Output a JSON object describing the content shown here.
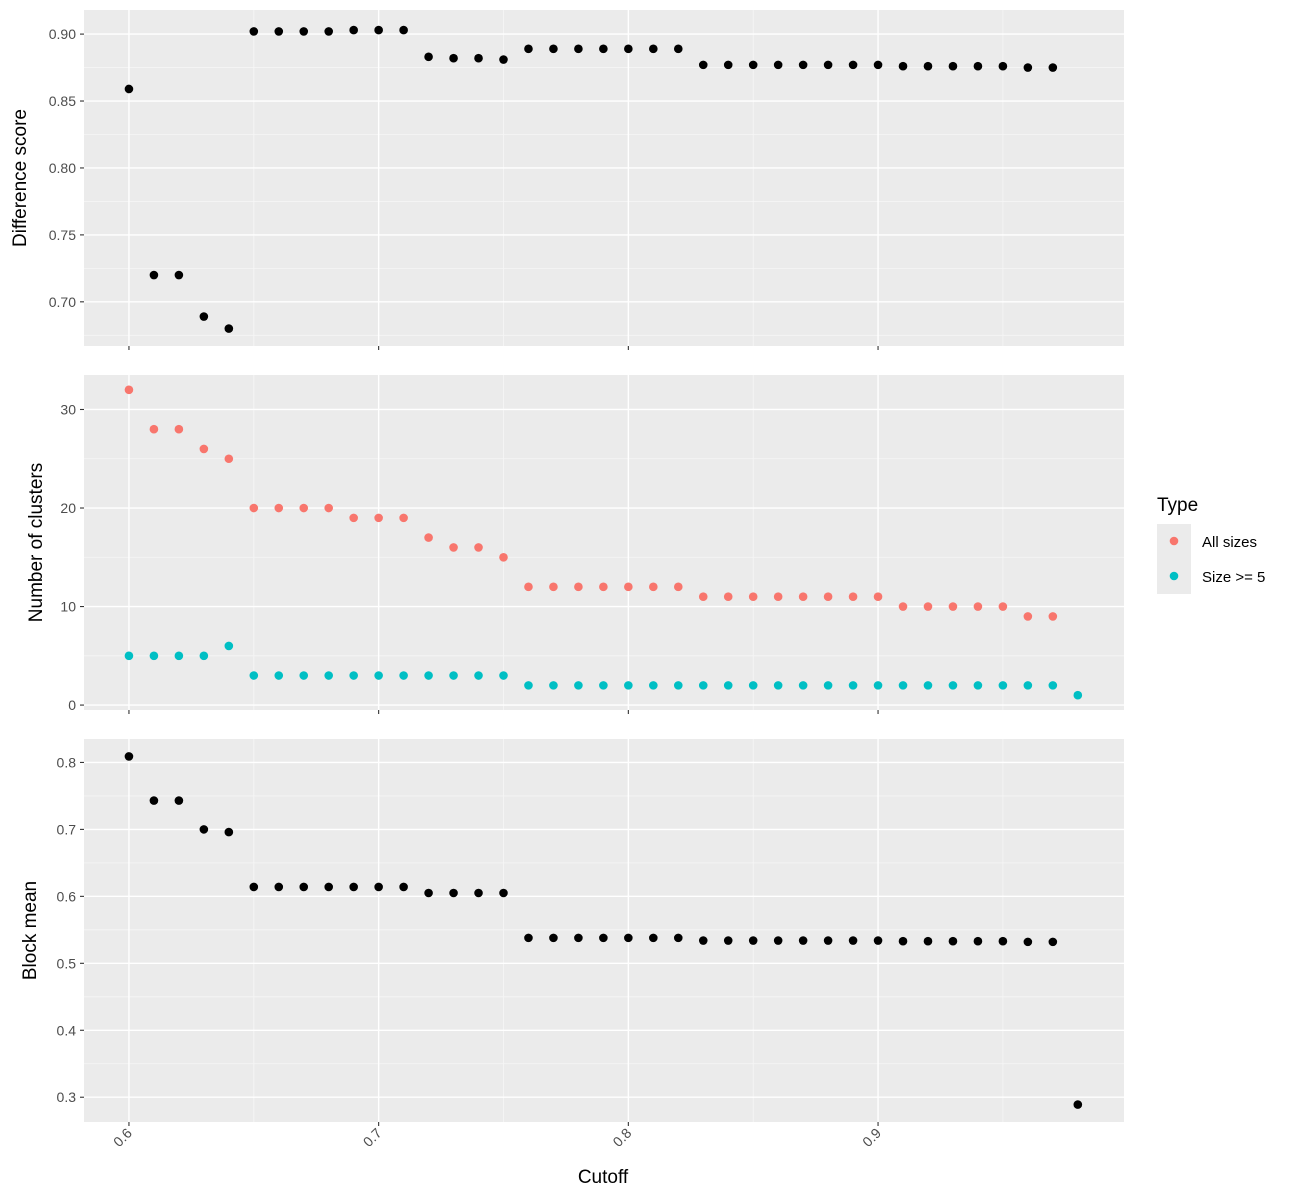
{
  "chart_data": [
    {
      "type": "scatter",
      "panel": "top",
      "ylabel": "Difference score",
      "xlabel": "",
      "ylim": [
        0.667,
        0.918
      ],
      "yticks": [
        0.7,
        0.75,
        0.8,
        0.85,
        0.9
      ],
      "ytick_labels": [
        "0.70",
        "0.75",
        "0.80",
        "0.85",
        "0.90"
      ],
      "grid": true,
      "series": [
        {
          "color": "#000000",
          "x": [
            0.6,
            0.61,
            0.62,
            0.63,
            0.64,
            0.65,
            0.66,
            0.67,
            0.68,
            0.69,
            0.7,
            0.71,
            0.72,
            0.73,
            0.74,
            0.75,
            0.76,
            0.77,
            0.78,
            0.79,
            0.8,
            0.81,
            0.82,
            0.83,
            0.84,
            0.85,
            0.86,
            0.87,
            0.88,
            0.89,
            0.9,
            0.91,
            0.92,
            0.93,
            0.94,
            0.95,
            0.96,
            0.97
          ],
          "y": [
            0.859,
            0.72,
            0.72,
            0.689,
            0.68,
            0.902,
            0.902,
            0.902,
            0.902,
            0.903,
            0.903,
            0.903,
            0.883,
            0.882,
            0.882,
            0.881,
            0.889,
            0.889,
            0.889,
            0.889,
            0.889,
            0.889,
            0.889,
            0.877,
            0.877,
            0.877,
            0.877,
            0.877,
            0.877,
            0.877,
            0.877,
            0.876,
            0.876,
            0.876,
            0.876,
            0.876,
            0.875,
            0.875
          ]
        }
      ]
    },
    {
      "type": "scatter",
      "panel": "middle",
      "ylabel": "Number of clusters",
      "xlabel": "",
      "ylim": [
        -0.5,
        33.5
      ],
      "yticks": [
        0,
        10,
        20,
        30
      ],
      "ytick_labels": [
        "0",
        "10",
        "20",
        "30"
      ],
      "grid": true,
      "series": [
        {
          "name": "All sizes",
          "color": "#f8766d",
          "x": [
            0.6,
            0.61,
            0.62,
            0.63,
            0.64,
            0.65,
            0.66,
            0.67,
            0.68,
            0.69,
            0.7,
            0.71,
            0.72,
            0.73,
            0.74,
            0.75,
            0.76,
            0.77,
            0.78,
            0.79,
            0.8,
            0.81,
            0.82,
            0.83,
            0.84,
            0.85,
            0.86,
            0.87,
            0.88,
            0.89,
            0.9,
            0.91,
            0.92,
            0.93,
            0.94,
            0.95,
            0.96,
            0.97
          ],
          "y": [
            32,
            28,
            28,
            26,
            25,
            20,
            20,
            20,
            20,
            19,
            19,
            19,
            17,
            16,
            16,
            15,
            12,
            12,
            12,
            12,
            12,
            12,
            12,
            11,
            11,
            11,
            11,
            11,
            11,
            11,
            11,
            10,
            10,
            10,
            10,
            10,
            9,
            9
          ]
        },
        {
          "name": "Size >= 5",
          "color": "#00bfc4",
          "x": [
            0.6,
            0.61,
            0.62,
            0.63,
            0.64,
            0.65,
            0.66,
            0.67,
            0.68,
            0.69,
            0.7,
            0.71,
            0.72,
            0.73,
            0.74,
            0.75,
            0.76,
            0.77,
            0.78,
            0.79,
            0.8,
            0.81,
            0.82,
            0.83,
            0.84,
            0.85,
            0.86,
            0.87,
            0.88,
            0.89,
            0.9,
            0.91,
            0.92,
            0.93,
            0.94,
            0.95,
            0.96,
            0.97,
            0.98
          ],
          "y": [
            5,
            5,
            5,
            5,
            6,
            3,
            3,
            3,
            3,
            3,
            3,
            3,
            3,
            3,
            3,
            3,
            2,
            2,
            2,
            2,
            2,
            2,
            2,
            2,
            2,
            2,
            2,
            2,
            2,
            2,
            2,
            2,
            2,
            2,
            2,
            2,
            2,
            2,
            1
          ]
        }
      ]
    },
    {
      "type": "scatter",
      "panel": "bottom",
      "ylabel": "Block mean",
      "xlabel": "Cutoff",
      "ylim": [
        0.263,
        0.835
      ],
      "yticks": [
        0.3,
        0.4,
        0.5,
        0.6,
        0.7,
        0.8
      ],
      "ytick_labels": [
        "0.3",
        "0.4",
        "0.5",
        "0.6",
        "0.7",
        "0.8"
      ],
      "grid": true,
      "series": [
        {
          "color": "#000000",
          "x": [
            0.6,
            0.61,
            0.62,
            0.63,
            0.64,
            0.65,
            0.66,
            0.67,
            0.68,
            0.69,
            0.7,
            0.71,
            0.72,
            0.73,
            0.74,
            0.75,
            0.76,
            0.77,
            0.78,
            0.79,
            0.8,
            0.81,
            0.82,
            0.83,
            0.84,
            0.85,
            0.86,
            0.87,
            0.88,
            0.89,
            0.9,
            0.91,
            0.92,
            0.93,
            0.94,
            0.95,
            0.96,
            0.97,
            0.98
          ],
          "y": [
            0.809,
            0.743,
            0.743,
            0.7,
            0.696,
            0.614,
            0.614,
            0.614,
            0.614,
            0.614,
            0.614,
            0.614,
            0.605,
            0.605,
            0.605,
            0.605,
            0.538,
            0.538,
            0.538,
            0.538,
            0.538,
            0.538,
            0.538,
            0.534,
            0.534,
            0.534,
            0.534,
            0.534,
            0.534,
            0.534,
            0.534,
            0.533,
            0.533,
            0.533,
            0.533,
            0.533,
            0.532,
            0.532,
            0.289
          ]
        }
      ]
    }
  ],
  "x_axis": {
    "xlim": [
      0.582,
      0.9985
    ],
    "ticks": [
      0.6,
      0.7,
      0.8,
      0.9
    ],
    "tick_labels": [
      "0.6",
      "0.7",
      "0.8",
      "0.9"
    ],
    "label": "Cutoff"
  },
  "legend": {
    "title": "Type",
    "placement": "right",
    "entries": [
      {
        "label": "All sizes",
        "color": "#f8766d"
      },
      {
        "label": "Size >= 5",
        "color": "#00bfc4"
      }
    ]
  }
}
